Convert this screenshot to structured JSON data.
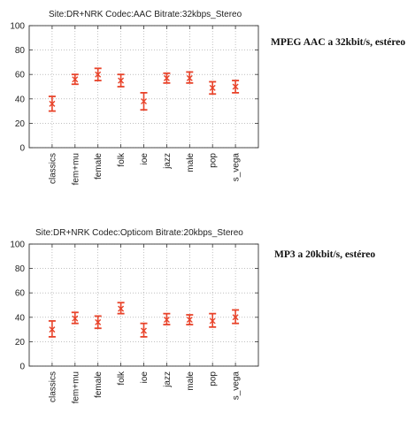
{
  "chart_data": [
    {
      "type": "errorbar",
      "title": "Site:DR+NRK Codec:AAC Bitrate:32kbps_Stereo",
      "caption": "MPEG AAC a 32kbit/s, estéreo",
      "categories": [
        "classics",
        "fem+mu",
        "female",
        "folk",
        "ioe",
        "jazz",
        "male",
        "pop",
        "s_vega"
      ],
      "mean": [
        36,
        56,
        60,
        55,
        38,
        57,
        57,
        49,
        50
      ],
      "lower": [
        30,
        52,
        55,
        50,
        31,
        53,
        53,
        44,
        45
      ],
      "upper": [
        42,
        60,
        65,
        60,
        45,
        61,
        62,
        54,
        55
      ],
      "ylim": [
        0,
        100
      ],
      "yticks": [
        "0",
        "20",
        "40",
        "60",
        "80",
        "100"
      ],
      "grid": true,
      "color": "#e8432a"
    },
    {
      "type": "errorbar",
      "title": "Site:DR+NRK Codec:Opticom Bitrate:20kbps_Stereo",
      "caption": "MP3 a 20kbit/s, estéreo",
      "categories": [
        "classics",
        "fem+mu",
        "female",
        "folk",
        "ioe",
        "jazz",
        "male",
        "pop",
        "s_vega"
      ],
      "mean": [
        30,
        39,
        36,
        47,
        29,
        38,
        38,
        37,
        40
      ],
      "lower": [
        24,
        35,
        31,
        43,
        24,
        34,
        34,
        32,
        35
      ],
      "upper": [
        37,
        44,
        41,
        52,
        35,
        43,
        42,
        43,
        46
      ],
      "ylim": [
        0,
        100
      ],
      "yticks": [
        "0",
        "20",
        "40",
        "60",
        "80",
        "100"
      ],
      "grid": true,
      "color": "#e8432a"
    }
  ]
}
